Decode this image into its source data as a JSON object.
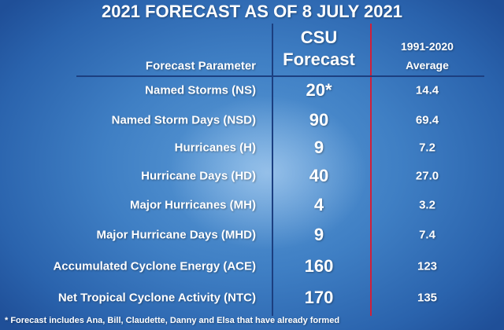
{
  "title": "2021 FORECAST AS OF 8 JULY 2021",
  "table": {
    "header": {
      "parameter": "Forecast Parameter",
      "csu": [
        "CSU",
        "Forecast"
      ],
      "average": [
        "1991-2020",
        "Average"
      ]
    },
    "rows": [
      [
        "Named Storms (NS)",
        "20*",
        "14.4"
      ],
      [
        "Named Storm Days (NSD)",
        "90",
        "69.4"
      ],
      [
        "Hurricanes (H)",
        "9",
        "7.2"
      ],
      [
        "Hurricane Days (HD)",
        "40",
        "27.0"
      ],
      [
        "Major Hurricanes (MH)",
        "4",
        "3.2"
      ],
      [
        "Major Hurricane Days (MHD)",
        "9",
        "7.4"
      ],
      [
        "Accumulated Cyclone Energy (ACE)",
        "160",
        "123"
      ],
      [
        "Net Tropical Cyclone Activity (NTC)",
        "170",
        "135"
      ]
    ]
  },
  "footnote": "* Forecast includes Ana, Bill, Claudette, Danny and Elsa that have already formed"
}
